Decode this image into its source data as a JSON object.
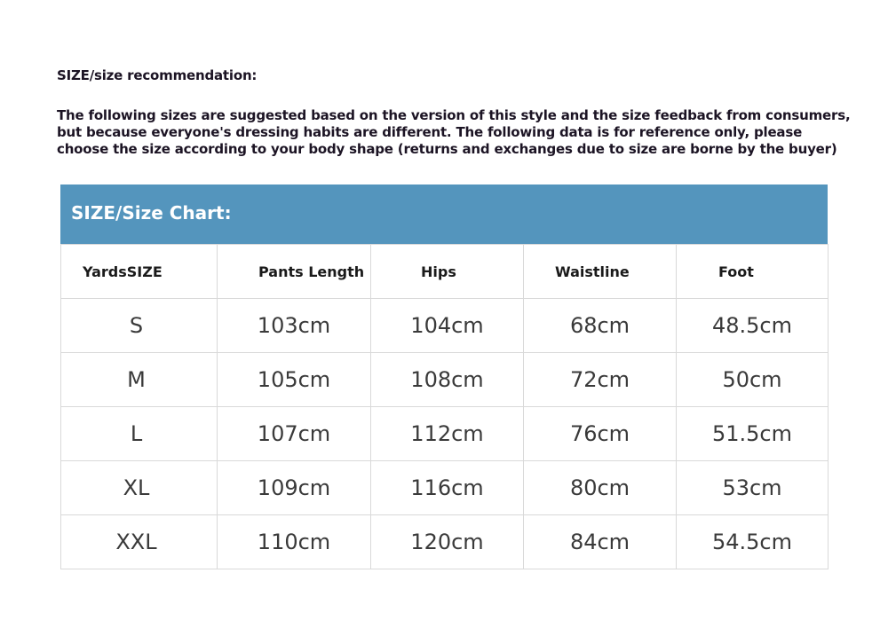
{
  "recommendation_title": "SIZE/size recommendation:",
  "note_lines": [
    "The following sizes are suggested based on the version of this style and the size feedback from consumers,",
    "but because everyone's dressing habits are different. The following data is for reference only, please",
    "choose the size according to your body shape (returns and exchanges due to size are borne by the buyer)"
  ],
  "chart_title": "SIZE/Size Chart:",
  "header_color": "#5495bd",
  "columns": [
    "YardsSIZE",
    "Pants Length",
    "Hips",
    "Waistline",
    "Foot"
  ],
  "rows": [
    [
      "S",
      "103cm",
      "104cm",
      "68cm",
      "48.5cm"
    ],
    [
      "M",
      "105cm",
      "108cm",
      "72cm",
      "50cm"
    ],
    [
      "L",
      "107cm",
      "112cm",
      "76cm",
      "51.5cm"
    ],
    [
      "XL",
      "109cm",
      "116cm",
      "80cm",
      "53cm"
    ],
    [
      "XXL",
      "110cm",
      "120cm",
      "84cm",
      "54.5cm"
    ]
  ]
}
